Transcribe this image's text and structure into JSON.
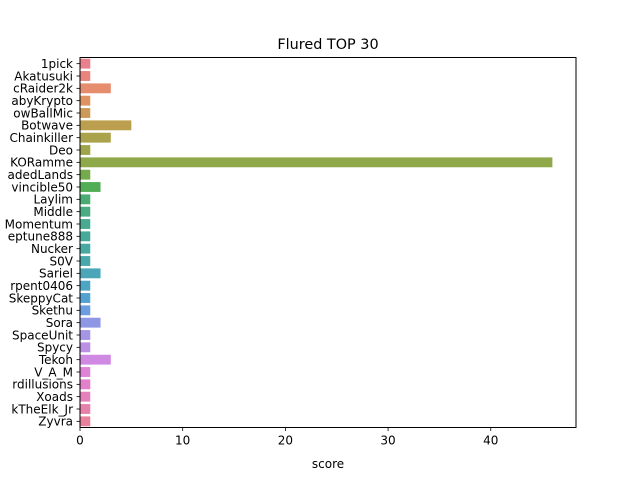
{
  "chart_data": {
    "type": "bar",
    "orientation": "horizontal",
    "title": "Flured TOP 30",
    "xlabel": "score",
    "ylabel": "",
    "xlim": [
      0,
      48.3
    ],
    "x_ticks": [
      0,
      10,
      20,
      30,
      40
    ],
    "grid": false,
    "categories": [
      "1pick",
      "Akatusuki",
      "cRaider2k",
      "abyKrypto",
      "owBallMic",
      "Botwave",
      "Chainkiller",
      "Deo",
      "KORamme",
      "adedLands",
      "vincible50",
      "Laylim",
      "Middle",
      "Momentum",
      "eptune888",
      "Nucker",
      "S0V",
      "Sariel",
      "rpent0406",
      "SkeppyCat",
      "Skethu",
      "Sora",
      "SpaceUnit",
      "Spycy",
      "Tekoh",
      "V_A_M",
      "rdillusions",
      "Xoads",
      "kTheElk_Jr",
      "Zyvra"
    ],
    "values": [
      1,
      1,
      3,
      1,
      1,
      5,
      3,
      1,
      46,
      1,
      2,
      1,
      1,
      1,
      1,
      1,
      1,
      2,
      1,
      1,
      1,
      2,
      1,
      1,
      3,
      1,
      1,
      1,
      1,
      1
    ],
    "colors": [
      "#e8818c",
      "#e7847e",
      "#e68d6e",
      "#dd9462",
      "#cb9a59",
      "#bc9f4e",
      "#aba34b",
      "#9fa44a",
      "#8fa849",
      "#75ab4b",
      "#52ae54",
      "#4bac73",
      "#4aab83",
      "#48aa90",
      "#47a99a",
      "#48a8a2",
      "#48a8ac",
      "#4aa6b8",
      "#4ca5c3",
      "#51a1d1",
      "#6b9de0",
      "#8e97e4",
      "#a694e5",
      "#bb8fe4",
      "#d089e3",
      "#de83d8",
      "#e281ca",
      "#e481ba",
      "#e681ab",
      "#e8819c"
    ]
  }
}
